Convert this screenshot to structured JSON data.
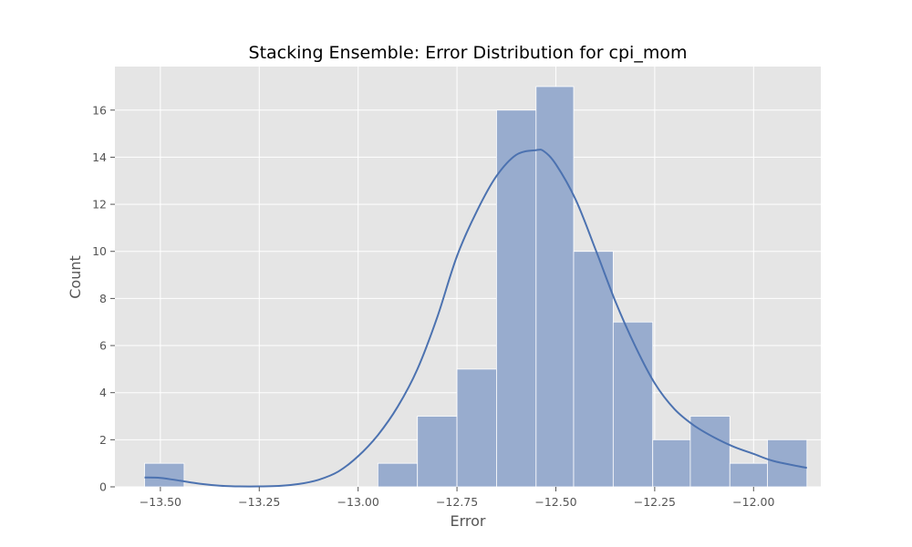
{
  "chart_data": {
    "type": "bar",
    "title": "Stacking Ensemble: Error Distribution for cpi_mom",
    "xlabel": "Error",
    "ylabel": "Count",
    "xlim": [
      -13.615,
      -11.83
    ],
    "ylim": [
      0,
      17.85
    ],
    "xticks": [
      -13.5,
      -13.25,
      -13.0,
      -12.75,
      -12.5,
      -12.25,
      -12.0
    ],
    "xtick_labels": [
      "−13.50",
      "−13.25",
      "−13.00",
      "−12.75",
      "−12.50",
      "−12.25",
      "−12.00"
    ],
    "yticks": [
      0,
      2,
      4,
      6,
      8,
      10,
      12,
      14,
      16
    ],
    "ytick_labels": [
      "0",
      "2",
      "4",
      "6",
      "8",
      "10",
      "12",
      "14",
      "16"
    ],
    "grid": true,
    "bins": [
      {
        "start": -13.54,
        "end": -13.44,
        "count": 1
      },
      {
        "start": -12.95,
        "end": -12.85,
        "count": 1
      },
      {
        "start": -12.85,
        "end": -12.75,
        "count": 3
      },
      {
        "start": -12.75,
        "end": -12.65,
        "count": 5
      },
      {
        "start": -12.65,
        "end": -12.55,
        "count": 16
      },
      {
        "start": -12.55,
        "end": -12.455,
        "count": 17
      },
      {
        "start": -12.455,
        "end": -12.355,
        "count": 10
      },
      {
        "start": -12.355,
        "end": -12.255,
        "count": 7
      },
      {
        "start": -12.255,
        "end": -12.16,
        "count": 2
      },
      {
        "start": -12.16,
        "end": -12.06,
        "count": 3
      },
      {
        "start": -12.06,
        "end": -11.965,
        "count": 1
      },
      {
        "start": -11.965,
        "end": -11.865,
        "count": 2
      }
    ],
    "kde": {
      "x": [
        -13.54,
        -13.5,
        -13.45,
        -13.4,
        -13.35,
        -13.3,
        -13.25,
        -13.2,
        -13.15,
        -13.1,
        -13.05,
        -13.0,
        -12.95,
        -12.9,
        -12.85,
        -12.8,
        -12.75,
        -12.7,
        -12.65,
        -12.6,
        -12.55,
        -12.53,
        -12.5,
        -12.45,
        -12.4,
        -12.35,
        -12.3,
        -12.25,
        -12.2,
        -12.15,
        -12.1,
        -12.05,
        -12.0,
        -11.95,
        -11.865
      ],
      "y": [
        0.4,
        0.38,
        0.26,
        0.13,
        0.05,
        0.02,
        0.02,
        0.04,
        0.12,
        0.3,
        0.65,
        1.3,
        2.2,
        3.4,
        5.0,
        7.2,
        9.8,
        11.7,
        13.2,
        14.1,
        14.3,
        14.25,
        13.7,
        12.2,
        10.1,
        7.9,
        6.0,
        4.4,
        3.3,
        2.6,
        2.1,
        1.7,
        1.4,
        1.1,
        0.8
      ]
    },
    "colors": {
      "background": "#e5e5e5",
      "grid": "#ffffff",
      "bar_fill": "#98acce",
      "bar_edge": "#ffffff",
      "kde_line": "#4c72b0",
      "text": "#555555",
      "title": "#000000"
    }
  }
}
